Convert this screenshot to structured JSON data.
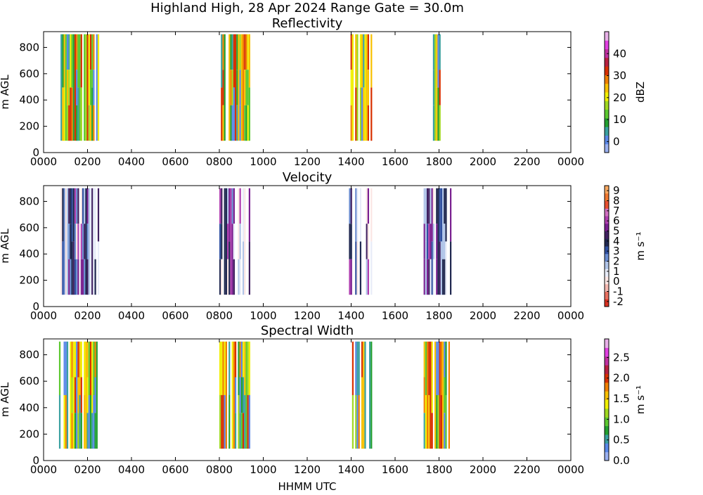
{
  "figure": {
    "title": "Highland High, 28 Apr 2024 Range Gate = 30.0m",
    "xlabel": "HHMM UTC"
  },
  "chart_data": [
    {
      "type": "heatmap",
      "title": "Reflectivity",
      "ylabel": "m AGL",
      "xlim": [
        0,
        2400
      ],
      "x_tick_labels": [
        "0000",
        "0200",
        "0400",
        "0600",
        "0800",
        "1000",
        "1200",
        "1400",
        "1600",
        "1800",
        "2000",
        "2200",
        "0000"
      ],
      "y_ticks": [
        0,
        200,
        400,
        600,
        800
      ],
      "ylim": [
        0,
        920
      ],
      "colorbar": {
        "label": "dBZ",
        "range": [
          -5,
          50
        ],
        "ticks": [
          0,
          10,
          20,
          30,
          40
        ],
        "colors": [
          "#9ab0f0",
          "#5a88e8",
          "#3aa0a0",
          "#22a030",
          "#5cc830",
          "#a0d820",
          "#f0f000",
          "#f8c000",
          "#f08000",
          "#d83000",
          "#b82040",
          "#c030a0",
          "#e040e0",
          "#e8b0e8"
        ]
      },
      "bands": [
        {
          "start": 70,
          "end": 250,
          "bottom": 90,
          "top": 900
        },
        {
          "start": 800,
          "end": 940,
          "bottom": 90,
          "top": 900
        },
        {
          "start": 1390,
          "end": 1490,
          "bottom": 90,
          "top": 900
        },
        {
          "start": 1730,
          "end": 1810,
          "bottom": 90,
          "top": 900
        }
      ]
    },
    {
      "type": "heatmap",
      "title": "Velocity",
      "ylabel": "m AGL",
      "xlim": [
        0,
        2400
      ],
      "x_tick_labels": [
        "0000",
        "0200",
        "0400",
        "0600",
        "0800",
        "1000",
        "1200",
        "1400",
        "1600",
        "1800",
        "2000",
        "2200",
        "0000"
      ],
      "y_ticks": [
        0,
        200,
        400,
        600,
        800
      ],
      "ylim": [
        0,
        920
      ],
      "colorbar": {
        "label": "m s⁻¹",
        "range": [
          -2.5,
          9.5
        ],
        "ticks": [
          "-2",
          "-1",
          "0",
          "1",
          "2",
          "3",
          "4",
          "5",
          "6",
          "7",
          "8",
          "9"
        ],
        "colors": [
          "#d83020",
          "#e87060",
          "#f4b8b0",
          "#fbe6e4",
          "#e8ecf8",
          "#b0c4e8",
          "#6a8cd0",
          "#3050a0",
          "#202850",
          "#402060",
          "#7a2090",
          "#b040b0",
          "#d070c0",
          "#e85030",
          "#f07830",
          "#f8a860"
        ]
      },
      "bands": [
        {
          "start": 70,
          "end": 250,
          "bottom": 90,
          "top": 900
        },
        {
          "start": 800,
          "end": 940,
          "bottom": 90,
          "top": 900
        },
        {
          "start": 1390,
          "end": 1490,
          "bottom": 90,
          "top": 900
        },
        {
          "start": 1730,
          "end": 1850,
          "bottom": 90,
          "top": 900
        }
      ]
    },
    {
      "type": "heatmap",
      "title": "Spectral Width",
      "ylabel": "m AGL",
      "xlim": [
        0,
        2400
      ],
      "x_tick_labels": [
        "0000",
        "0200",
        "0400",
        "0600",
        "0800",
        "1000",
        "1200",
        "1400",
        "1600",
        "1800",
        "2000",
        "2200",
        "0000"
      ],
      "y_ticks": [
        0,
        200,
        400,
        600,
        800
      ],
      "ylim": [
        0,
        920
      ],
      "colorbar": {
        "label": "m s⁻¹",
        "range": [
          0,
          2.95
        ],
        "ticks": [
          "0.0",
          "0.5",
          "1.0",
          "1.5",
          "2.0",
          "2.5"
        ],
        "colors": [
          "#9ab0f0",
          "#5a88e8",
          "#3aa0a0",
          "#22a030",
          "#5cc830",
          "#a0d820",
          "#f0f000",
          "#f8c000",
          "#f08000",
          "#d83000",
          "#b82040",
          "#c030a0",
          "#e040e0",
          "#e8b0e8"
        ]
      },
      "bands": [
        {
          "start": 70,
          "end": 250,
          "bottom": 90,
          "top": 900
        },
        {
          "start": 800,
          "end": 940,
          "bottom": 90,
          "top": 900
        },
        {
          "start": 1390,
          "end": 1490,
          "bottom": 90,
          "top": 900
        },
        {
          "start": 1730,
          "end": 1850,
          "bottom": 90,
          "top": 900
        }
      ]
    }
  ]
}
